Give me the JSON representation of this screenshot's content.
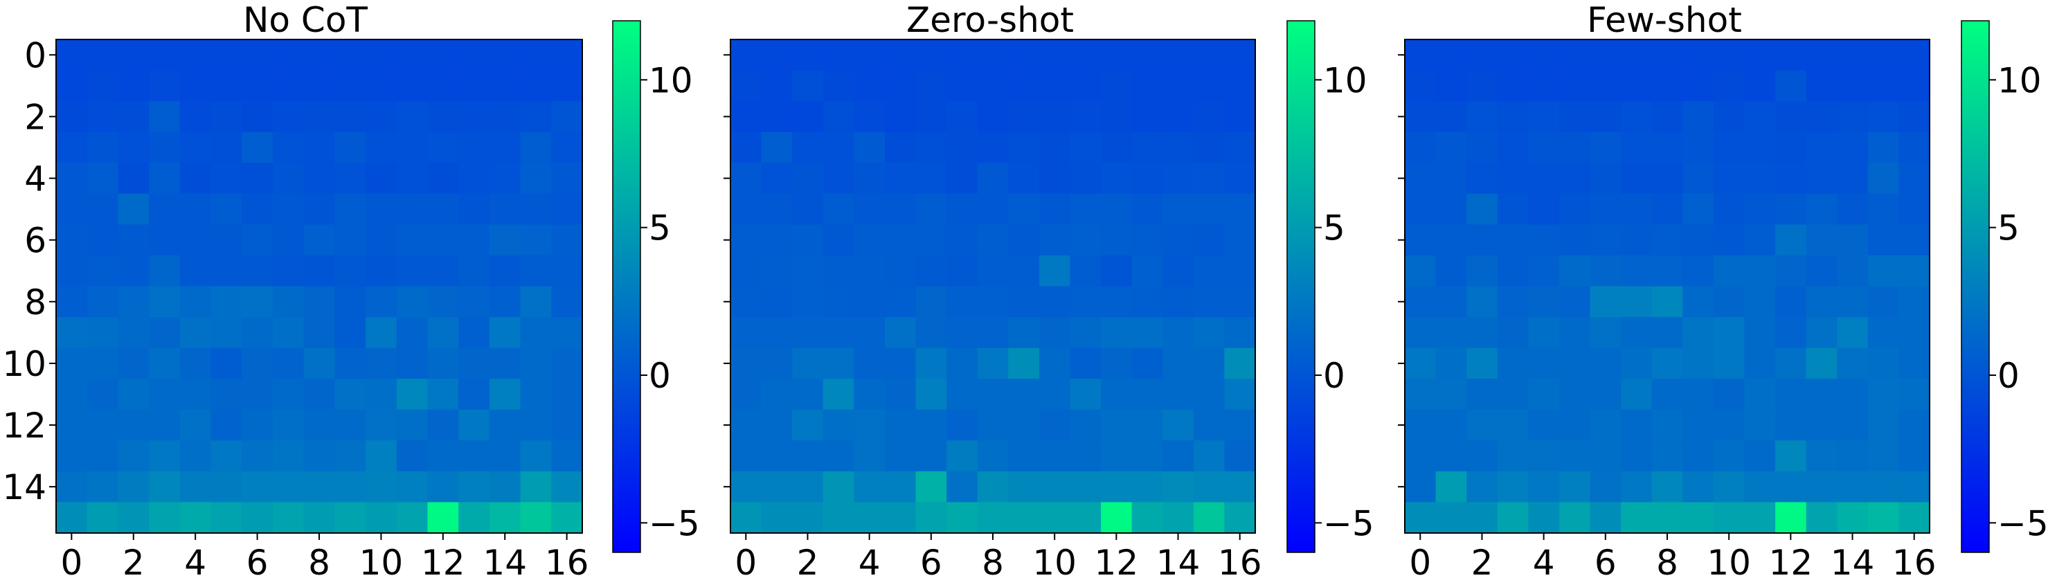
{
  "chart_data": [
    {
      "type": "heatmap",
      "title": "No CoT",
      "xlabel": "",
      "ylabel": "",
      "x_ticks": [
        "0",
        "2",
        "4",
        "6",
        "8",
        "10",
        "12",
        "14",
        "16"
      ],
      "y_ticks": [
        "0",
        "2",
        "4",
        "6",
        "8",
        "10",
        "12",
        "14"
      ],
      "colorbar": {
        "min": -6,
        "max": 12,
        "ticks": [
          "−5",
          "0",
          "5",
          "10"
        ],
        "colormap": "winter"
      },
      "values": [
        [
          -1,
          -1,
          -1,
          -1,
          -1,
          -1,
          -1,
          -1,
          -1,
          -1,
          -1,
          -1,
          -1,
          -1,
          -1,
          -1,
          -1
        ],
        [
          -1,
          -0.8,
          -1,
          -0.7,
          -1,
          -1,
          -1,
          -1,
          -1,
          -1,
          -1,
          -1,
          -1,
          -1,
          -1,
          -1,
          -1
        ],
        [
          -0.8,
          -0.6,
          -0.5,
          0.5,
          -0.7,
          -0.5,
          -0.8,
          -0.6,
          -0.5,
          -0.5,
          -0.6,
          -0.3,
          -0.5,
          -0.6,
          -0.5,
          -0.4,
          0
        ],
        [
          -0.3,
          0,
          -0.3,
          0,
          -0.3,
          -0.4,
          0.6,
          -0.2,
          -0.3,
          0.3,
          -0.3,
          -0.3,
          -0.2,
          -0.3,
          -0.3,
          0.5,
          -0.2
        ],
        [
          0.2,
          0.5,
          -0.5,
          0.5,
          -0.5,
          -0.3,
          -0.4,
          0,
          -0.3,
          -0.2,
          -0.6,
          -0.3,
          -0.5,
          -0.3,
          -0.2,
          0.7,
          0.3
        ],
        [
          0.2,
          0.3,
          1.5,
          0.2,
          0.3,
          0.5,
          0,
          0.2,
          0,
          0.5,
          0.3,
          0.3,
          0.2,
          0,
          0.3,
          0.2,
          0.1
        ],
        [
          0.4,
          0.3,
          0.4,
          0.3,
          0.2,
          0.2,
          0.5,
          0.3,
          0.8,
          0.5,
          0.3,
          0.5,
          0.5,
          0.5,
          1.2,
          1,
          0.6
        ],
        [
          0.4,
          0.5,
          0.4,
          1.2,
          0.3,
          0.2,
          0.3,
          0.1,
          0,
          0.2,
          0,
          0.2,
          0.3,
          0.5,
          0.3,
          0.5,
          0.5
        ],
        [
          0.6,
          1,
          1.4,
          2,
          1.5,
          1.8,
          2,
          1.5,
          1.2,
          0.5,
          1,
          1.5,
          1.2,
          1,
          0.8,
          2,
          0.6
        ],
        [
          2,
          1.8,
          1.5,
          1.2,
          2,
          1.8,
          1.5,
          1.8,
          1.2,
          0.5,
          2.5,
          1,
          2,
          0.8,
          2.5,
          1.5,
          1.5
        ],
        [
          1.5,
          1.5,
          1.2,
          1.8,
          1.2,
          0.5,
          1.2,
          1,
          2,
          1,
          1.2,
          1,
          1.5,
          1.2,
          1.2,
          1.5,
          1.2
        ],
        [
          1.5,
          1.2,
          1.8,
          1.5,
          1.5,
          1.2,
          1.2,
          1.5,
          1.2,
          2,
          1.8,
          3.5,
          2.5,
          1,
          3,
          1.5,
          1.2
        ],
        [
          1.5,
          1.5,
          1.5,
          1.5,
          2,
          1,
          1.5,
          1.8,
          1.5,
          1.5,
          2,
          1.8,
          1.2,
          2.5,
          1.5,
          1.5,
          1.2
        ],
        [
          1.5,
          1.5,
          2,
          2.5,
          1.8,
          2.5,
          2,
          2.2,
          1.8,
          2,
          3,
          1.2,
          1.5,
          1.5,
          1.5,
          2.5,
          1.5
        ],
        [
          2,
          2.2,
          2.8,
          3.5,
          2.8,
          2.8,
          3,
          3,
          3,
          3,
          3.2,
          3,
          2.5,
          3,
          2.8,
          5,
          3.5
        ],
        [
          4,
          5,
          4.5,
          5.5,
          6,
          5.5,
          5,
          5.5,
          5,
          5.5,
          5,
          5.5,
          11.5,
          6,
          7,
          8,
          6.5
        ]
      ]
    },
    {
      "type": "heatmap",
      "title": "Zero-shot",
      "xlabel": "",
      "ylabel": "",
      "x_ticks": [
        "0",
        "2",
        "4",
        "6",
        "8",
        "10",
        "12",
        "14",
        "16"
      ],
      "y_ticks": [
        "0",
        "2",
        "4",
        "6",
        "8",
        "10",
        "12",
        "14"
      ],
      "colorbar": {
        "min": -6,
        "max": 12,
        "ticks": [
          "−5",
          "0",
          "5",
          "10"
        ],
        "colormap": "winter"
      },
      "values": [
        [
          -1,
          -1,
          -1,
          -1,
          -1,
          -1,
          -1,
          -1,
          -1,
          -1,
          -1,
          -1,
          -1,
          -1,
          -1,
          -1,
          -1
        ],
        [
          -0.8,
          -1,
          -0.4,
          -0.8,
          -1,
          -1,
          -0.8,
          -1,
          -1,
          -1,
          -1,
          -1,
          -0.8,
          -1,
          -1,
          -1,
          -1
        ],
        [
          -1,
          -1,
          -1,
          -0.4,
          -0.7,
          -1,
          -0.8,
          -0.6,
          -1,
          -0.8,
          -0.8,
          -0.7,
          -0.8,
          -1,
          -1,
          -0.8,
          -1
        ],
        [
          -0.5,
          0.6,
          -0.3,
          -0.3,
          0.4,
          -0.5,
          -0.4,
          -0.5,
          -0.6,
          -0.4,
          -0.5,
          -0.3,
          -0.5,
          -0.4,
          -0.4,
          -0.5,
          -0.4
        ],
        [
          0.2,
          -0.2,
          0,
          -0.3,
          0,
          -0.2,
          -0.2,
          -0.5,
          0.2,
          -0.3,
          -0.5,
          -0.4,
          -0.2,
          -0.3,
          -0.2,
          -0.1,
          -0.3
        ],
        [
          0.3,
          0.3,
          0,
          0.5,
          0.3,
          0.2,
          0.5,
          0.2,
          0.2,
          0.5,
          0.3,
          0.5,
          0.5,
          0.3,
          0.5,
          0.5,
          0.5
        ],
        [
          0.5,
          0.5,
          0.6,
          0.3,
          0.5,
          0.5,
          0.5,
          0.4,
          0.6,
          0.4,
          0.6,
          0.8,
          0.6,
          0.5,
          0.4,
          0.3,
          0.5
        ],
        [
          0.5,
          0.6,
          0.8,
          0.6,
          0.6,
          0.5,
          0.4,
          0.3,
          0.5,
          0.5,
          2.5,
          0.5,
          0,
          0.8,
          0.3,
          0.5,
          0.5
        ],
        [
          0.6,
          0.5,
          0.8,
          0.7,
          0.6,
          0.7,
          1.2,
          0.8,
          0.8,
          0.6,
          0.6,
          0.8,
          0.8,
          0.7,
          0.5,
          0.6,
          0.6
        ],
        [
          1,
          1,
          1,
          1,
          1,
          2,
          1.2,
          1,
          1,
          1.5,
          1.2,
          1.5,
          1.8,
          1.8,
          1.5,
          1.8,
          1.5
        ],
        [
          1.2,
          1.2,
          2,
          2,
          1,
          1,
          2.5,
          1.5,
          2.5,
          4,
          1.5,
          0.8,
          1.2,
          0.8,
          1.5,
          1.5,
          4
        ],
        [
          1.2,
          1.5,
          1.5,
          3.5,
          1.5,
          1.2,
          3,
          1.5,
          1.5,
          1.5,
          1.5,
          2.5,
          1.5,
          1.5,
          1.5,
          1.5,
          2.5
        ],
        [
          1.5,
          1.5,
          2.5,
          1.8,
          2,
          1.5,
          1.5,
          1,
          1.5,
          1.5,
          1.2,
          1.5,
          1.8,
          1.8,
          2.5,
          1.5,
          1.5
        ],
        [
          1.5,
          1.5,
          1.5,
          1.5,
          2,
          1.5,
          1.5,
          2.8,
          1.8,
          1.5,
          1.5,
          1.5,
          1.8,
          1.8,
          1.5,
          2.5,
          1.2
        ],
        [
          3,
          3,
          3,
          4.5,
          3,
          3,
          6.5,
          2,
          4,
          3.5,
          3.5,
          3.5,
          3.5,
          3.5,
          3.8,
          3.5,
          3.5
        ],
        [
          4.5,
          4,
          4,
          4.5,
          4.5,
          4.5,
          5.5,
          6,
          5.5,
          5.5,
          5.5,
          5.5,
          11.5,
          6,
          5.5,
          8,
          5.5
        ]
      ]
    },
    {
      "type": "heatmap",
      "title": "Few-shot",
      "xlabel": "",
      "ylabel": "",
      "x_ticks": [
        "0",
        "2",
        "4",
        "6",
        "8",
        "10",
        "12",
        "14",
        "16"
      ],
      "y_ticks": [
        "0",
        "2",
        "4",
        "6",
        "8",
        "10",
        "12",
        "14"
      ],
      "colorbar": {
        "min": -6,
        "max": 12,
        "ticks": [
          "−5",
          "0",
          "5",
          "10"
        ],
        "colormap": "winter"
      },
      "values": [
        [
          -1,
          -1,
          -1,
          -1,
          -1,
          -1,
          -1,
          -1,
          -1,
          -1,
          -1,
          -1,
          -1,
          -1,
          -1,
          -1,
          -1
        ],
        [
          -0.8,
          -1,
          -0.8,
          -1,
          -1,
          -1,
          -1,
          -1,
          -1,
          -1,
          -0.8,
          -1,
          0,
          -1,
          -1,
          -1,
          -1
        ],
        [
          -0.5,
          -0.5,
          -0.2,
          -0.4,
          -0.3,
          -0.5,
          -0.5,
          -0.3,
          -0.5,
          0,
          -0.5,
          -0.3,
          -0.5,
          -0.5,
          -0.4,
          -0.3,
          -0.5
        ],
        [
          0,
          0.3,
          0,
          -0.3,
          0,
          0,
          0.2,
          -0.2,
          -0.2,
          0,
          -0.3,
          -0.3,
          -0.4,
          -0.2,
          -0.2,
          0.6,
          0
        ],
        [
          0.2,
          0.3,
          -0.2,
          -0.3,
          -0.3,
          -0.3,
          0,
          -0.4,
          -0.4,
          0.2,
          -0.2,
          -0.2,
          -0.3,
          -0.2,
          -0.2,
          1.2,
          0.3
        ],
        [
          0.2,
          0.3,
          1.5,
          0,
          -0.3,
          0,
          0.2,
          0.2,
          0,
          0.8,
          0,
          0.3,
          0.4,
          0.8,
          0.3,
          0.5,
          0.2
        ],
        [
          0.5,
          0.5,
          0.5,
          0.5,
          0.5,
          0.4,
          0.5,
          0.4,
          0.5,
          0.4,
          0.3,
          0.5,
          2,
          1.2,
          1.2,
          0.5,
          0.5
        ],
        [
          1.5,
          0.5,
          1.2,
          0.5,
          0.8,
          1.5,
          1.2,
          1,
          1,
          0.8,
          1.5,
          1.5,
          1.2,
          0.8,
          1.2,
          1.8,
          1.8
        ],
        [
          1,
          1,
          2,
          1,
          1.2,
          1,
          3,
          3,
          3.5,
          1.5,
          1.2,
          1.5,
          0.8,
          1.5,
          1.5,
          1.2,
          1.5
        ],
        [
          1.5,
          1.5,
          1.5,
          1.2,
          1.8,
          1.5,
          2,
          1.5,
          1.5,
          2.2,
          2.5,
          1.5,
          1,
          2,
          3,
          1.5,
          1.5
        ],
        [
          2.5,
          1.8,
          3,
          1.5,
          1.5,
          1.5,
          1.5,
          1.8,
          2.5,
          2.2,
          2.5,
          1.5,
          2,
          3.5,
          2,
          1.8,
          1.5
        ],
        [
          2,
          2,
          1.5,
          1.5,
          1.8,
          1.5,
          1.5,
          2.5,
          1.5,
          1.5,
          1.2,
          1.8,
          1.5,
          1.5,
          1.5,
          2,
          1.8
        ],
        [
          1.5,
          1.5,
          2,
          2,
          1.5,
          1.5,
          1.8,
          1.5,
          1.8,
          1.5,
          1.5,
          1.8,
          1.5,
          1.5,
          1.5,
          2,
          1.5
        ],
        [
          1.5,
          1.5,
          1.5,
          2,
          2,
          1.8,
          1.8,
          1.5,
          1.8,
          1.5,
          1.8,
          1.5,
          3.5,
          2,
          1.8,
          2,
          1.5
        ],
        [
          1.5,
          5,
          2.5,
          3,
          2.5,
          3,
          2,
          2.5,
          3.5,
          2.5,
          3,
          2.5,
          2.5,
          2.5,
          2.5,
          2.5,
          2.5
        ],
        [
          4,
          4,
          4,
          5.5,
          4,
          5.5,
          4,
          6,
          6,
          6,
          5.5,
          5.5,
          11.5,
          5.5,
          6.5,
          7,
          6
        ]
      ]
    }
  ]
}
